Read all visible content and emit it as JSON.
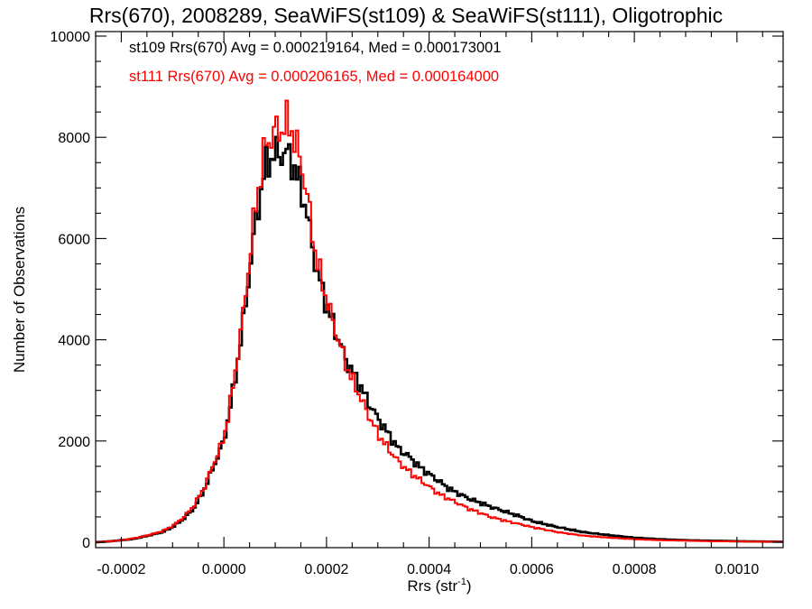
{
  "chart_data": {
    "type": "histogram",
    "title": "Rrs(670), 2008289, SeaWiFS(st109) & SeaWiFS(st111), Oligotrophic",
    "xlabel": "Rrs (str",
    "xlabel_sup": "-1",
    "xlabel_end": ")",
    "ylabel": "Number of Observations",
    "xlim": [
      -0.00025,
      0.00109
    ],
    "ylim": [
      0,
      10000
    ],
    "x_ticks": [
      -0.0002,
      0.0,
      0.0002,
      0.0004,
      0.0006,
      0.0008,
      0.001
    ],
    "x_tick_labels": [
      "-0.0002",
      "0.0000",
      "0.0002",
      "0.0004",
      "0.0006",
      "0.0008",
      "0.0010"
    ],
    "y_ticks": [
      0,
      2000,
      4000,
      6000,
      8000,
      10000
    ],
    "y_tick_labels": [
      "0",
      "2000",
      "4000",
      "6000",
      "8000",
      "10000"
    ],
    "bin_width": 5e-06,
    "legend": [
      {
        "text": "st109 Rrs(670) Avg = 0.000219164, Med = 0.000173001",
        "color": "#000000"
      },
      {
        "text": "st111 Rrs(670) Avg = 0.000206165, Med = 0.000164000",
        "color": "#ff0000"
      }
    ],
    "series": [
      {
        "color": "#000000",
        "x": [
          -0.00025,
          -0.00022,
          -0.0002,
          -0.00018,
          -0.00016,
          -0.00014,
          -0.00012,
          -0.0001,
          -8e-05,
          -6e-05,
          -4e-05,
          -2e-05,
          0.0,
          2e-05,
          4e-05,
          6e-05,
          8e-05,
          0.0001,
          0.00011,
          0.00012,
          0.00013,
          0.00014,
          0.00015,
          0.00016,
          0.00017,
          0.00018,
          0.0002,
          0.00022,
          0.00024,
          0.00026,
          0.00028,
          0.0003,
          0.00032,
          0.00034,
          0.00036,
          0.00038,
          0.0004,
          0.00042,
          0.00044,
          0.00046,
          0.00048,
          0.0005,
          0.00052,
          0.00055,
          0.00058,
          0.0006,
          0.00065,
          0.0007,
          0.00075,
          0.0008,
          0.00085,
          0.0009,
          0.00095,
          0.001,
          0.00109
        ],
        "y": [
          0,
          20,
          40,
          60,
          100,
          150,
          200,
          300,
          450,
          650,
          1000,
          1500,
          2000,
          3100,
          4500,
          6200,
          7400,
          7700,
          7650,
          7700,
          7600,
          7300,
          7000,
          6600,
          6000,
          5400,
          4700,
          4100,
          3550,
          3200,
          2800,
          2450,
          2150,
          1850,
          1700,
          1500,
          1350,
          1200,
          1050,
          950,
          850,
          780,
          700,
          600,
          500,
          420,
          300,
          200,
          140,
          90,
          60,
          40,
          30,
          20,
          10
        ]
      },
      {
        "color": "#ff0000",
        "x": [
          -0.00025,
          -0.00022,
          -0.0002,
          -0.00018,
          -0.00016,
          -0.00014,
          -0.00012,
          -0.0001,
          -8e-05,
          -6e-05,
          -4e-05,
          -2e-05,
          0.0,
          2e-05,
          4e-05,
          6e-05,
          8e-05,
          0.0001,
          0.00011,
          0.00012,
          0.00013,
          0.00014,
          0.00015,
          0.00016,
          0.00017,
          0.00018,
          0.0002,
          0.00022,
          0.00024,
          0.00026,
          0.00028,
          0.0003,
          0.00032,
          0.00034,
          0.00036,
          0.00038,
          0.0004,
          0.00042,
          0.00044,
          0.00046,
          0.00048,
          0.0005,
          0.00052,
          0.00055,
          0.00058,
          0.0006,
          0.00065,
          0.0007,
          0.00075,
          0.0008,
          0.00085,
          0.0009,
          0.00095,
          0.001,
          0.00109
        ],
        "y": [
          0,
          20,
          40,
          70,
          110,
          160,
          220,
          320,
          480,
          700,
          1050,
          1550,
          2050,
          3200,
          4700,
          6500,
          7800,
          8150,
          8100,
          8300,
          8200,
          7900,
          7500,
          7000,
          6300,
          5600,
          4800,
          4100,
          3450,
          3000,
          2550,
          2150,
          1850,
          1600,
          1400,
          1250,
          1100,
          950,
          850,
          750,
          650,
          580,
          500,
          420,
          350,
          300,
          200,
          130,
          90,
          60,
          40,
          30,
          20,
          15,
          8
        ]
      }
    ]
  }
}
